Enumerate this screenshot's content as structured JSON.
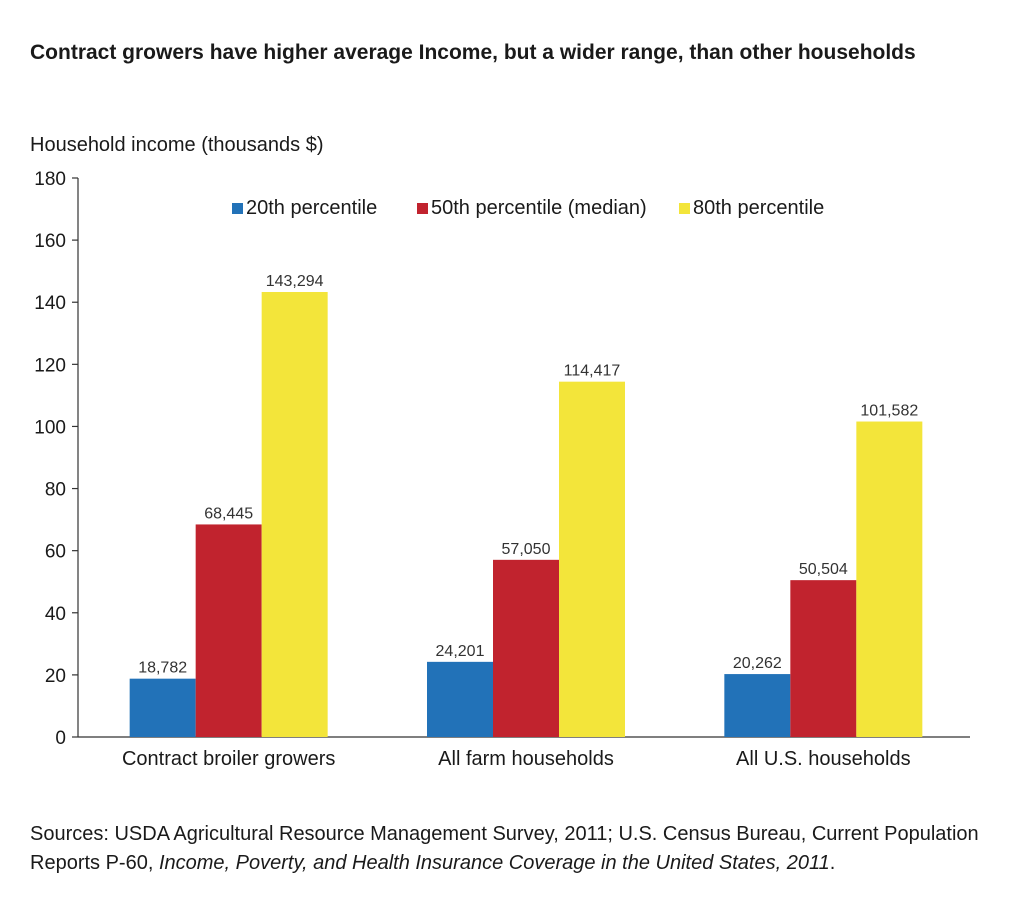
{
  "title": "Contract growers have higher average Income, but a wider range, than other households",
  "chart_data": {
    "type": "bar",
    "title": "Contract growers have higher average Income, but a wider range, than other households",
    "ylabel": "Household income (thousands $)",
    "xlabel": "",
    "ylim": [
      0,
      180
    ],
    "yticks": [
      0,
      20,
      40,
      60,
      80,
      100,
      120,
      140,
      160,
      180
    ],
    "categories": [
      "Contract broiler growers",
      "All farm households",
      "All U.S. households"
    ],
    "series": [
      {
        "name": "20th percentile",
        "color": "#2272b8",
        "values": [
          18.782,
          24.201,
          20.262
        ],
        "labels": [
          "18,782",
          "24,201",
          "20,262"
        ]
      },
      {
        "name": "50th percentile (median)",
        "color": "#c1232e",
        "values": [
          68.445,
          57.05,
          50.504
        ],
        "labels": [
          "68,445",
          "57,050",
          "50,504"
        ]
      },
      {
        "name": "80th percentile",
        "color": "#f3e53a",
        "values": [
          143.294,
          114.417,
          101.582
        ],
        "labels": [
          "143,294",
          "114,417",
          "101,582"
        ]
      }
    ],
    "legend_position": "top",
    "grid": false
  },
  "sources": {
    "prefix": "Sources: USDA Agricultural Resource Management Survey, 2011; U.S. Census Bureau, Current Population Reports P-60, ",
    "italic": "Income, Poverty, and Health Insurance Coverage in the United States, 2011",
    "suffix": "."
  }
}
